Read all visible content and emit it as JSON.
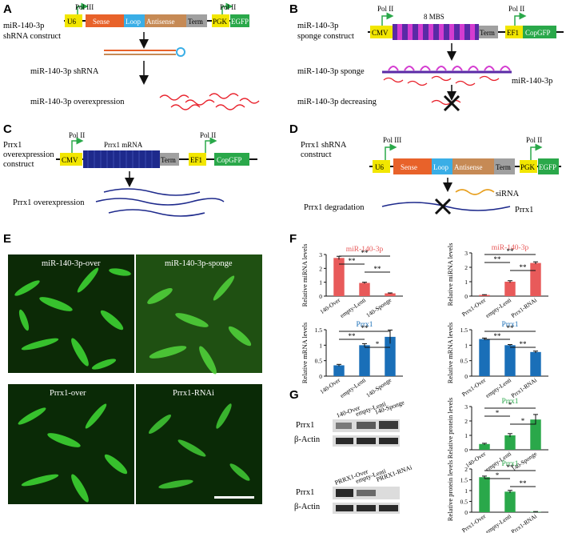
{
  "panels": {
    "A": {
      "letter": "A",
      "construct_label": [
        "miR-140-3p",
        "shRNA construct"
      ],
      "promoter1": "Pol III",
      "promoter2": "Pol II",
      "segments": [
        "U6",
        "Sense",
        "Loop",
        "Antisense",
        "Term",
        "PGK",
        "EGFP"
      ],
      "shrna_label": "miR-140-3p shRNA",
      "over_label": "miR-140-3p overexpression"
    },
    "B": {
      "letter": "B",
      "construct_label": [
        "miR-140-3p",
        "sponge construct"
      ],
      "promoter1": "Pol II",
      "promoter2": "Pol II",
      "mbs_label": "8 MBS",
      "segments": [
        "CMV",
        "Term",
        "EF1",
        "CopGFP"
      ],
      "sponge_label": "miR-140-3p sponge",
      "mirna_label": "miR-140-3p",
      "decrease_label": "miR-140-3p decreasing"
    },
    "C": {
      "letter": "C",
      "construct_label": [
        "Prrx1",
        "overexpression",
        "construct"
      ],
      "promoter1": "Pol II",
      "promoter2": "Pol II",
      "mrna_label": "Prrx1 mRNA",
      "segments": [
        "CMV",
        "Term",
        "EF1",
        "CopGFP"
      ],
      "over_label": "Prrx1 overexpression"
    },
    "D": {
      "letter": "D",
      "construct_label": [
        "Prrx1 shRNA",
        "construct"
      ],
      "promoter1": "Pol III",
      "promoter2": "Pol II",
      "segments": [
        "U6",
        "Sense",
        "Loop",
        "Antisense",
        "Term",
        "PGK",
        "EGFP"
      ],
      "sirna_label": "siRNA",
      "target_label": "Prrx1",
      "degradation_label": "Prrx1 degradation"
    },
    "E": {
      "letter": "E",
      "images": [
        "miR-140-3p-over",
        "miR-140-3p-sponge",
        "Prrx1-over",
        "Prrx1-RNAi"
      ]
    },
    "F": {
      "letter": "F"
    },
    "G": {
      "letter": "G",
      "blot1_lanes": [
        "140-Over",
        "empty-Lenti",
        "140-Sponge"
      ],
      "blot2_lanes": [
        "PRRX1-Over",
        "empty-Lenti",
        "PRRX1-RNAi"
      ],
      "blot_rows": [
        "Prrx1",
        "β-Actin"
      ]
    }
  },
  "colors": {
    "u6": "#f2e600",
    "sense": "#e8622a",
    "loop": "#3aaee6",
    "antisense": "#c68a55",
    "term": "#a0a0a0",
    "pgk": "#f2e600",
    "egfp": "#2aa84a",
    "mbs_a": "#5a2aa6",
    "mbs_b": "#d43cd0",
    "mrna": "#1e2a8c",
    "red_rna": "#e8202a",
    "blue_rna": "#1e2a8c",
    "mir_title": "#e85a5a",
    "prrx_title_f": "#1a6fb8",
    "prrx_title_g": "#2aa84a",
    "bar_red": "#e85a5a",
    "bar_blue": "#1a6fb8",
    "bar_green": "#2aa84a"
  },
  "chart_data": [
    {
      "type": "bar",
      "title": "miR-140-3p",
      "ylabel": "Relative miRNA levels",
      "categories": [
        "140-Over",
        "empty-Lenti",
        "140-Sponge"
      ],
      "values": [
        2.75,
        0.95,
        0.2
      ],
      "errors": [
        0.12,
        0.05,
        0.03
      ],
      "ylim": [
        0,
        3
      ],
      "yticks": [
        0,
        1,
        2,
        3
      ],
      "sig": [
        {
          "from": 0,
          "to": 1,
          "label": "**"
        },
        {
          "from": 0,
          "to": 2,
          "label": "**"
        },
        {
          "from": 1,
          "to": 2,
          "label": "**"
        }
      ]
    },
    {
      "type": "bar",
      "title": "miR-140-3p",
      "ylabel": "Relative miRNA levels",
      "categories": [
        "Prrx1-Over",
        "empty-Lenti",
        "Prrx1-RNAi"
      ],
      "values": [
        0.08,
        1.0,
        2.3
      ],
      "errors": [
        0.02,
        0.07,
        0.08
      ],
      "ylim": [
        0,
        3
      ],
      "yticks": [
        0,
        1,
        2,
        3
      ],
      "sig": [
        {
          "from": 0,
          "to": 1,
          "label": "**"
        },
        {
          "from": 0,
          "to": 2,
          "label": "**"
        },
        {
          "from": 1,
          "to": 2,
          "label": "**"
        }
      ]
    },
    {
      "type": "bar",
      "title": "Prrx1",
      "ylabel": "Relative mRNA levels",
      "categories": [
        "140-Over",
        "empty-Lenti",
        "140-Sponge"
      ],
      "values": [
        0.35,
        1.0,
        1.27
      ],
      "errors": [
        0.03,
        0.05,
        0.22
      ],
      "ylim": [
        0,
        1.5
      ],
      "yticks": [
        0,
        0.5,
        1,
        1.5
      ],
      "sig": [
        {
          "from": 0,
          "to": 1,
          "label": "**"
        },
        {
          "from": 0,
          "to": 2,
          "label": "**"
        },
        {
          "from": 1,
          "to": 2,
          "label": "*"
        }
      ]
    },
    {
      "type": "bar",
      "title": "Prrx1",
      "ylabel": "Relative mRNA levels",
      "categories": [
        "Prrx1-Over",
        "empty-Lenti",
        "Prrx1-RNAi"
      ],
      "values": [
        1.2,
        1.0,
        0.78
      ],
      "errors": [
        0.03,
        0.02,
        0.03
      ],
      "ylim": [
        0,
        1.5
      ],
      "yticks": [
        0,
        0.5,
        1,
        1.5
      ],
      "sig": [
        {
          "from": 0,
          "to": 1,
          "label": "**"
        },
        {
          "from": 0,
          "to": 2,
          "label": "**"
        },
        {
          "from": 1,
          "to": 2,
          "label": "**"
        }
      ]
    },
    {
      "type": "bar",
      "title": "Prrx1",
      "ylabel": "Relative protein levels",
      "categories": [
        "140-Over",
        "empty-Lenti",
        "140-Sponge"
      ],
      "values": [
        0.4,
        1.0,
        2.1
      ],
      "errors": [
        0.05,
        0.12,
        0.35
      ],
      "ylim": [
        0,
        3
      ],
      "yticks": [
        0,
        1,
        2,
        3
      ],
      "sig": [
        {
          "from": 0,
          "to": 1,
          "label": "*"
        },
        {
          "from": 0,
          "to": 2,
          "label": "*"
        },
        {
          "from": 1,
          "to": 2,
          "label": "*"
        }
      ]
    },
    {
      "type": "bar",
      "title": "Prrx1",
      "ylabel": "Relative protein levels",
      "categories": [
        "Prrx1-Over",
        "empty-Lenti",
        "Prrx1-RNAi"
      ],
      "values": [
        1.62,
        0.95,
        0.02
      ],
      "errors": [
        0.05,
        0.06,
        0.01
      ],
      "ylim": [
        0,
        2
      ],
      "yticks": [
        0,
        0.5,
        1,
        1.5,
        2
      ],
      "sig": [
        {
          "from": 0,
          "to": 1,
          "label": "*"
        },
        {
          "from": 0,
          "to": 2,
          "label": "**"
        },
        {
          "from": 1,
          "to": 2,
          "label": "**"
        }
      ]
    }
  ]
}
